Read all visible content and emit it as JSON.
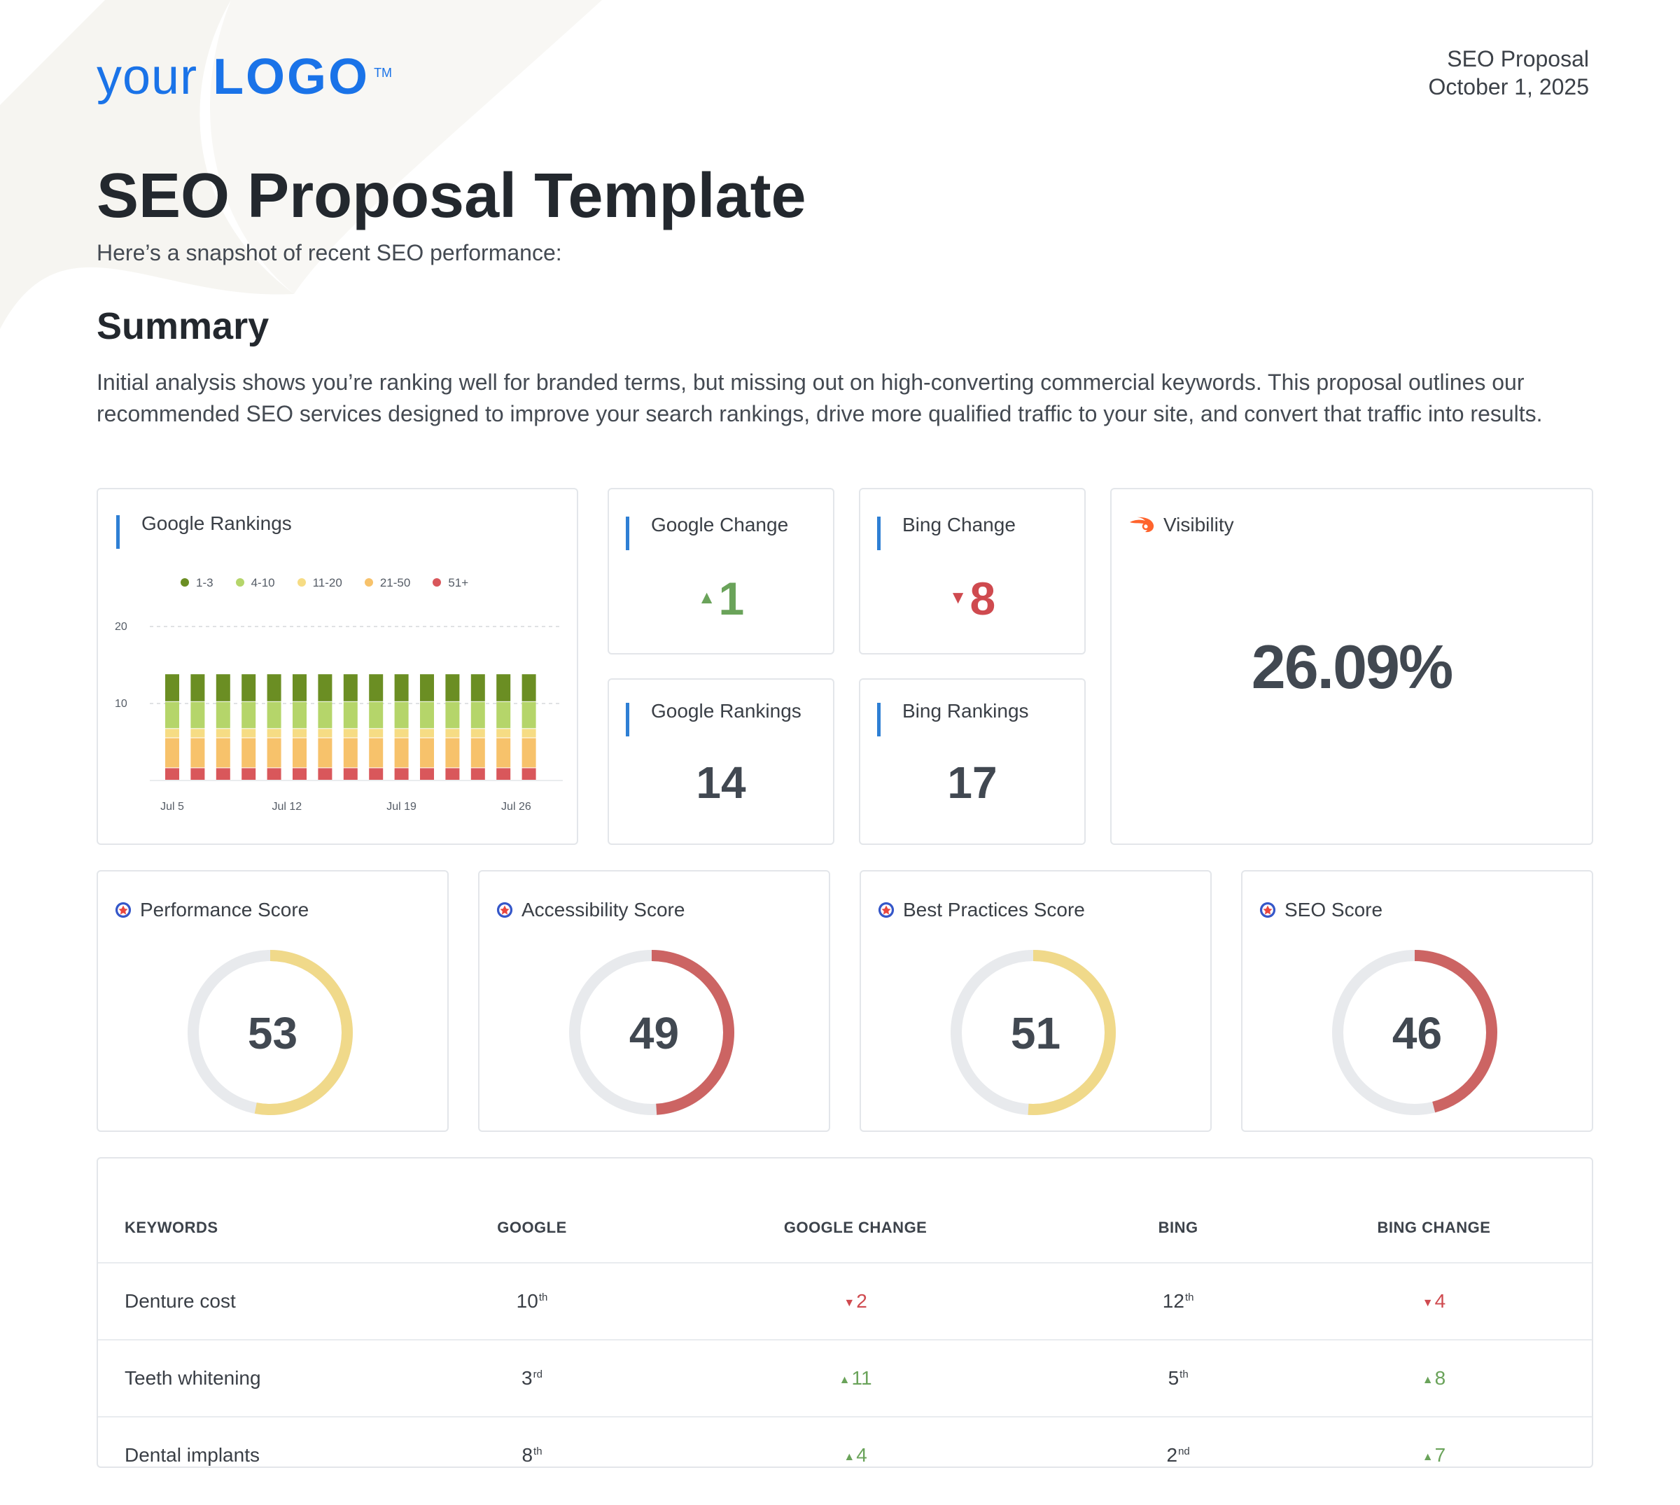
{
  "header": {
    "logo_prefix": "your",
    "logo_main": "LOGO",
    "logo_tm": "TM",
    "doc_label": "SEO Proposal",
    "date": "October 1, 2025"
  },
  "title": "SEO Proposal Template",
  "subtitle": "Here’s a snapshot of recent SEO performance:",
  "summary": {
    "heading": "Summary",
    "text": "Initial analysis shows you’re ranking well for branded terms, but missing out on high-converting commercial keywords. This proposal outlines our recommended SEO services designed to improve your search rankings, drive more qualified traffic to your site, and convert that traffic into results."
  },
  "colors": {
    "accent": "#1a73e8",
    "up": "#6aa35a",
    "down": "#cf4a4f",
    "rank_1_3": "#6b8e23",
    "rank_4_10": "#b5d56a",
    "rank_11_20": "#f6dc84",
    "rank_21_50": "#f7c26b",
    "rank_51_plus": "#d9575b",
    "donut_yellow": "#f0d98a",
    "donut_red": "#cc6463",
    "donut_track": "#e8eaed"
  },
  "cards": {
    "google_rankings_chart_title": "Google Rankings",
    "google_change": {
      "title": "Google Change",
      "value": "1",
      "direction": "up",
      "arrow": "▲"
    },
    "bing_change": {
      "title": "Bing Change",
      "value": "8",
      "direction": "down",
      "arrow": "▼"
    },
    "google_rankings": {
      "title": "Google Rankings",
      "value": "14"
    },
    "bing_rankings": {
      "title": "Bing Rankings",
      "value": "17"
    },
    "visibility": {
      "title": "Visibility",
      "value": "26.09%",
      "icon": "semrush-flame-icon"
    }
  },
  "scores": [
    {
      "title": "Performance Score",
      "value": "53",
      "percent": 53,
      "color": "#f0d98a"
    },
    {
      "title": "Accessibility Score",
      "value": "49",
      "percent": 49,
      "color": "#cc6463"
    },
    {
      "title": "Best Practices Score",
      "value": "51",
      "percent": 51,
      "color": "#f0d98a"
    },
    {
      "title": "SEO Score",
      "value": "46",
      "percent": 46,
      "color": "#cc6463"
    }
  ],
  "keywords_table": {
    "headers": [
      "KEYWORDS",
      "GOOGLE",
      "GOOGLE CHANGE",
      "BING",
      "BING CHANGE"
    ],
    "rows": [
      {
        "keyword": "Denture cost",
        "google": "10",
        "google_suffix": "th",
        "google_change": "2",
        "google_dir": "▼",
        "bing": "12",
        "bing_suffix": "th",
        "bing_change": "4",
        "bing_dir": "▼"
      },
      {
        "keyword": "Teeth whitening",
        "google": "3",
        "google_suffix": "rd",
        "google_change": "11",
        "google_dir": "▲",
        "bing": "5",
        "bing_suffix": "th",
        "bing_change": "8",
        "bing_dir": "▲"
      },
      {
        "keyword": "Dental implants",
        "google": "8",
        "google_suffix": "th",
        "google_change": "4",
        "google_dir": "▲",
        "bing": "2",
        "bing_suffix": "nd",
        "bing_change": "7",
        "bing_dir": "▲"
      }
    ]
  },
  "chart_data": {
    "type": "bar",
    "title": "Google Rankings",
    "stacked": true,
    "legend": [
      "1-3",
      "4-10",
      "11-20",
      "21-50",
      "51+"
    ],
    "x_tick_labels": [
      "Jul 5",
      "Jul 12",
      "Jul 19",
      "Jul 26"
    ],
    "y_tick_labels": [
      "10",
      "20"
    ],
    "ylim": [
      0,
      20
    ],
    "grid": true,
    "num_bars": 15,
    "series": [
      {
        "name": "51+",
        "color": "#d9575b",
        "values": [
          1.6,
          1.6,
          1.6,
          1.6,
          1.6,
          1.6,
          1.6,
          1.6,
          1.6,
          1.6,
          1.6,
          1.6,
          1.6,
          1.6,
          1.6
        ]
      },
      {
        "name": "21-50",
        "color": "#f7c26b",
        "values": [
          3.9,
          3.9,
          3.9,
          3.9,
          3.9,
          3.9,
          3.9,
          3.9,
          3.9,
          3.9,
          3.9,
          3.9,
          3.9,
          3.9,
          3.9
        ]
      },
      {
        "name": "11-20",
        "color": "#f6dc84",
        "values": [
          1.2,
          1.2,
          1.2,
          1.2,
          1.2,
          1.2,
          1.2,
          1.2,
          1.2,
          1.2,
          1.2,
          1.2,
          1.2,
          1.2,
          1.2
        ]
      },
      {
        "name": "4-10",
        "color": "#b5d56a",
        "values": [
          3.5,
          3.5,
          3.5,
          3.5,
          3.5,
          3.5,
          3.5,
          3.5,
          3.5,
          3.5,
          3.5,
          3.5,
          3.5,
          3.5,
          3.5
        ]
      },
      {
        "name": "1-3",
        "color": "#6b8e23",
        "values": [
          3.6,
          3.6,
          3.6,
          3.6,
          3.6,
          3.6,
          3.6,
          3.6,
          3.6,
          3.6,
          3.6,
          3.6,
          3.6,
          3.6,
          3.6
        ]
      }
    ]
  }
}
